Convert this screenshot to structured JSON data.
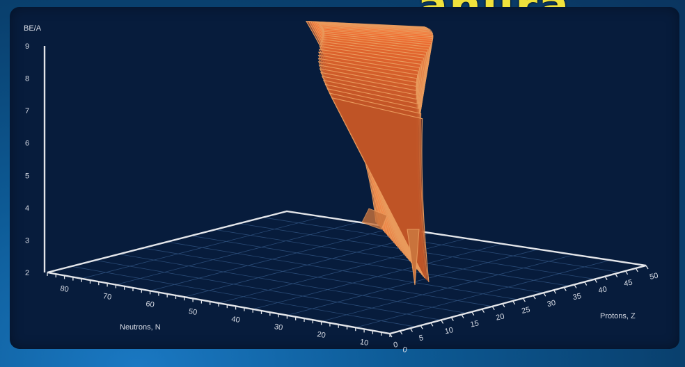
{
  "chart_data": {
    "type": "surface3d",
    "title": "",
    "zlabel": "BE/A",
    "xlabel": "Neutrons, N",
    "ylabel": "Protons, Z",
    "z_ticks": [
      "9",
      "8",
      "7",
      "6",
      "5",
      "4",
      "3",
      "2"
    ],
    "n_ticks": [
      "80",
      "70",
      "60",
      "50",
      "40",
      "30",
      "20",
      "10",
      "0"
    ],
    "z_proton_ticks": [
      "0",
      "5",
      "10",
      "15",
      "20",
      "25",
      "30",
      "35",
      "40",
      "45",
      "50"
    ],
    "zlim": [
      2,
      9
    ],
    "nlim": [
      0,
      80
    ],
    "plim": [
      0,
      50
    ],
    "grid": true,
    "surface_color": "#d98a4e",
    "series": [
      {
        "name": "",
        "N": 0,
        "Z": 8,
        "BE_A": 2.2
      },
      {
        "name": "",
        "N": 2,
        "Z": 4,
        "BE_A": 4.5
      },
      {
        "name": "",
        "N": 6,
        "Z": 6,
        "BE_A": 7.6
      },
      {
        "name": "",
        "N": 8,
        "Z": 8,
        "BE_A": 8.0
      },
      {
        "name": "",
        "N": 16,
        "Z": 14,
        "BE_A": 8.4
      },
      {
        "name": "",
        "N": 24,
        "Z": 20,
        "BE_A": 8.6
      },
      {
        "name": "",
        "N": 30,
        "Z": 26,
        "BE_A": 8.8
      },
      {
        "name": "",
        "N": 40,
        "Z": 34,
        "BE_A": 8.7
      },
      {
        "name": "",
        "N": 50,
        "Z": 40,
        "BE_A": 8.7
      }
    ]
  },
  "header": {
    "title_fragment": "anura"
  }
}
